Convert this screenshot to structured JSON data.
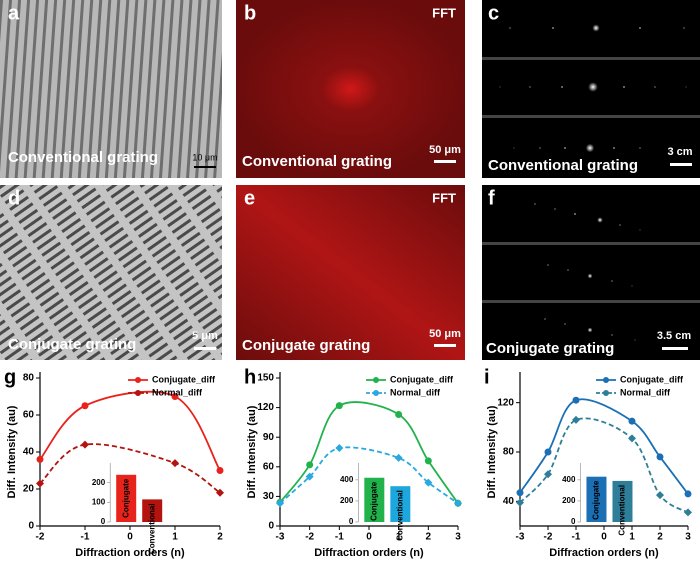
{
  "panels": [
    {
      "letter": "a",
      "caption": "Conventional grating",
      "scale": "10 μm"
    },
    {
      "letter": "b",
      "tag": "FFT",
      "caption": "Conventional grating",
      "scale": "50 μm"
    },
    {
      "letter": "c",
      "caption": "Conventional grating",
      "scale": "3 cm"
    },
    {
      "letter": "d",
      "caption": "Conjugate grating",
      "scale": "5 μm"
    },
    {
      "letter": "e",
      "tag": "FFT",
      "caption": "Conjugate grating",
      "scale": "50 μm"
    },
    {
      "letter": "f",
      "caption": "Conjugate grating",
      "scale": "3.5 cm"
    }
  ],
  "chart_data": [
    {
      "type": "line",
      "letter": "g",
      "x_label": "Diffraction orders (n)",
      "y_label": "Diff. Intensity (au)",
      "x": [
        -2,
        -1,
        1,
        2
      ],
      "xlim": [
        -2,
        2
      ],
      "xticks": [
        -2,
        -1,
        0,
        1,
        2
      ],
      "ylim": [
        0,
        80
      ],
      "yticks": [
        0,
        20,
        40,
        60,
        80
      ],
      "series": [
        {
          "name": "Conjugate_diff",
          "color": "#e8231c",
          "dashed": false,
          "marker": "circle",
          "values": [
            36,
            65,
            70,
            30
          ]
        },
        {
          "name": "Normal_diff",
          "color": "#b3140f",
          "dashed": true,
          "marker": "diamond",
          "values": [
            23,
            44,
            34,
            18
          ]
        }
      ],
      "inset": {
        "categories": [
          "Conjugate",
          "Conventional"
        ],
        "values": [
          240,
          115
        ],
        "colors": [
          "#e8231c",
          "#b3140f"
        ],
        "ylim": [
          0,
          300
        ],
        "yticks": [
          0,
          100,
          200
        ]
      }
    },
    {
      "type": "line",
      "letter": "h",
      "x_label": "Diffraction orders (n)",
      "y_label": "Diff. Intensity (au)",
      "x": [
        -3,
        -2,
        -1,
        1,
        2,
        3
      ],
      "xlim": [
        -3,
        3
      ],
      "xticks": [
        -3,
        -2,
        -1,
        0,
        1,
        2,
        3
      ],
      "ylim": [
        0,
        150
      ],
      "yticks": [
        0,
        30,
        60,
        90,
        120,
        150
      ],
      "series": [
        {
          "name": "Conjugate_diff",
          "color": "#22b24c",
          "dashed": false,
          "marker": "circle",
          "values": [
            24,
            62,
            122,
            113,
            66,
            23
          ]
        },
        {
          "name": "Normal_diff",
          "color": "#2aa8e0",
          "dashed": true,
          "marker": "diamond",
          "values": [
            23,
            50,
            79,
            69,
            44,
            23
          ]
        }
      ],
      "inset": {
        "categories": [
          "Conjugate",
          "Conventional"
        ],
        "values": [
          420,
          340
        ],
        "colors": [
          "#22b24c",
          "#1ea7dd"
        ],
        "ylim": [
          0,
          560
        ],
        "yticks": [
          0,
          200,
          400
        ]
      }
    },
    {
      "type": "line",
      "letter": "i",
      "x_label": "Diffraction orders (n)",
      "y_label": "Diff. Intensity (au)",
      "x": [
        -3,
        -2,
        -1,
        1,
        2,
        3
      ],
      "xlim": [
        -3,
        3
      ],
      "xticks": [
        -3,
        -2,
        -1,
        0,
        1,
        2,
        3
      ],
      "ylim": [
        20,
        140
      ],
      "yticks": [
        40,
        80,
        120
      ],
      "series": [
        {
          "name": "Conjugate_diff",
          "color": "#1a6fb5",
          "dashed": false,
          "marker": "circle",
          "values": [
            47,
            80,
            122,
            105,
            76,
            46
          ]
        },
        {
          "name": "Normal_diff",
          "color": "#2f7e99",
          "dashed": true,
          "marker": "diamond",
          "values": [
            39,
            62,
            106,
            91,
            45,
            31
          ]
        }
      ],
      "inset": {
        "categories": [
          "Conjugate",
          "Conventional"
        ],
        "values": [
          430,
          390
        ],
        "colors": [
          "#1a6fb5",
          "#2f7e99"
        ],
        "ylim": [
          0,
          560
        ],
        "yticks": [
          0,
          200,
          400
        ]
      }
    }
  ]
}
